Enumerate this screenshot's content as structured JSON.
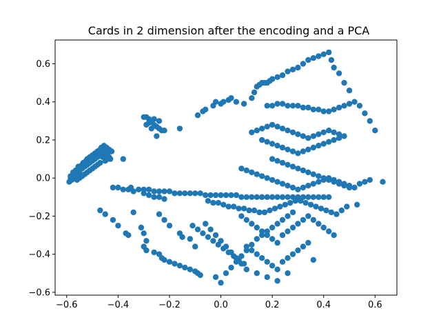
{
  "chart_data": {
    "type": "scatter",
    "title": "Cards in 2 dimension after the encoding and a PCA",
    "xlabel": "",
    "ylabel": "",
    "xlim": [
      -0.645,
      0.685
    ],
    "ylim": [
      -0.615,
      0.725
    ],
    "xticks": [
      -0.6,
      -0.4,
      -0.2,
      0.0,
      0.2,
      0.4,
      0.6
    ],
    "xtick_labels": [
      "−0.6",
      "−0.4",
      "−0.2",
      "0.0",
      "0.2",
      "0.4",
      "0.6"
    ],
    "yticks": [
      -0.6,
      -0.4,
      -0.2,
      0.0,
      0.2,
      0.4,
      0.6
    ],
    "ytick_labels": [
      "−0.6",
      "−0.4",
      "−0.2",
      "0.0",
      "0.2",
      "0.4",
      "0.6"
    ],
    "grid": false,
    "marker_color": "#1f77b4",
    "series": [
      {
        "name": "",
        "x": [
          -0.59,
          -0.585,
          -0.58,
          -0.575,
          -0.57,
          -0.565,
          -0.56,
          -0.555,
          -0.55,
          -0.545,
          -0.54,
          -0.535,
          -0.53,
          -0.525,
          -0.52,
          -0.515,
          -0.51,
          -0.505,
          -0.5,
          -0.495,
          -0.49,
          -0.485,
          -0.48,
          -0.475,
          -0.47,
          -0.465,
          -0.46,
          -0.455,
          -0.45,
          -0.445,
          -0.44,
          -0.435,
          -0.585,
          -0.575,
          -0.565,
          -0.555,
          -0.545,
          -0.535,
          -0.525,
          -0.515,
          -0.505,
          -0.495,
          -0.485,
          -0.475,
          -0.465,
          -0.455,
          -0.445,
          -0.435,
          -0.425,
          -0.58,
          -0.57,
          -0.56,
          -0.55,
          -0.54,
          -0.53,
          -0.52,
          -0.51,
          -0.5,
          -0.49,
          -0.48,
          -0.47,
          -0.46,
          -0.45,
          -0.44,
          -0.55,
          -0.53,
          -0.51,
          -0.49,
          -0.47,
          -0.45,
          -0.43,
          -0.56,
          -0.54,
          -0.52,
          -0.5,
          -0.48,
          -0.46,
          -0.29,
          -0.28,
          -0.27,
          -0.26,
          -0.25,
          -0.24,
          -0.23,
          -0.3,
          -0.28,
          -0.26,
          -0.27,
          -0.24,
          -0.22,
          -0.29,
          -0.25,
          -0.16,
          -0.38,
          -0.09,
          -0.07,
          -0.06,
          -0.03,
          -0.02,
          0.0,
          0.01,
          0.03,
          0.04,
          0.06,
          0.09,
          0.12,
          0.13,
          0.14,
          0.15,
          0.16,
          0.17,
          0.18,
          0.19,
          0.2,
          0.22,
          0.24,
          0.26,
          0.28,
          0.3,
          0.32,
          0.34,
          0.36,
          0.38,
          0.4,
          0.42,
          0.43,
          0.44,
          0.46,
          0.48,
          0.5,
          0.52,
          0.54,
          0.56,
          0.58,
          0.6,
          0.18,
          0.2,
          0.22,
          0.24,
          0.26,
          0.28,
          0.3,
          0.32,
          0.34,
          0.36,
          0.38,
          0.4,
          0.42,
          0.44,
          0.46,
          0.48,
          0.5,
          0.12,
          0.14,
          0.16,
          0.18,
          0.2,
          0.22,
          0.24,
          0.26,
          0.28,
          0.3,
          0.32,
          0.34,
          0.36,
          0.38,
          0.4,
          0.42,
          0.44,
          0.46,
          0.48,
          0.16,
          0.18,
          0.2,
          0.22,
          0.24,
          0.26,
          0.28,
          0.3,
          0.32,
          0.34,
          0.36,
          0.38,
          0.4,
          0.42,
          0.44,
          0.46,
          0.2,
          0.22,
          0.24,
          0.26,
          0.28,
          0.3,
          0.32,
          0.34,
          0.36,
          0.38,
          0.4,
          0.42,
          0.44,
          0.46,
          0.48,
          0.5,
          0.08,
          0.1,
          0.12,
          0.14,
          0.16,
          0.18,
          0.2,
          0.22,
          0.24,
          0.26,
          0.28,
          0.3,
          0.32,
          0.34,
          0.36,
          0.38,
          0.4,
          0.42,
          0.44,
          0.46,
          0.48,
          0.5,
          0.52,
          0.54,
          0.56,
          0.58,
          0.63,
          -0.35,
          -0.32,
          -0.3,
          -0.28,
          -0.26,
          -0.24,
          -0.22,
          -0.2,
          -0.18,
          -0.16,
          -0.14,
          -0.12,
          -0.1,
          -0.08,
          -0.06,
          -0.04,
          -0.02,
          0.0,
          0.02,
          0.04,
          0.06,
          0.08,
          0.1,
          0.12,
          0.14,
          0.16,
          0.18,
          0.2,
          0.22,
          0.24,
          0.26,
          0.28,
          0.3,
          0.32,
          0.34,
          0.36,
          0.38,
          0.4,
          0.42,
          -0.42,
          -0.4,
          -0.38,
          -0.36,
          -0.34,
          -0.3,
          -0.28,
          -0.26,
          -0.24,
          -0.22,
          -0.05,
          -0.03,
          -0.01,
          0.01,
          0.03,
          0.05,
          0.07,
          0.09,
          0.11,
          0.13,
          0.15,
          0.17,
          0.19,
          0.21,
          0.23,
          0.25,
          0.27,
          0.29,
          0.31,
          0.33,
          0.35,
          0.37,
          0.39,
          0.41,
          0.43,
          0.45,
          0.47,
          0.49,
          0.53,
          -0.47,
          -0.45,
          -0.42,
          -0.4,
          -0.37,
          -0.36,
          -0.34,
          -0.31,
          -0.3,
          -0.29,
          -0.3,
          -0.29,
          -0.26,
          -0.24,
          -0.23,
          -0.22,
          -0.2,
          -0.18,
          -0.16,
          -0.14,
          -0.12,
          -0.1,
          -0.09,
          -0.08,
          -0.24,
          -0.22,
          -0.2,
          -0.16,
          -0.15,
          -0.12,
          -0.1,
          -0.11,
          -0.09,
          -0.07,
          -0.05,
          -0.03,
          -0.01,
          0.01,
          0.03,
          0.05,
          0.07,
          0.09,
          0.08,
          0.1,
          0.12,
          0.14,
          0.16,
          0.18,
          0.2,
          0.22,
          0.24,
          0.26,
          0.28,
          0.3,
          0.32,
          0.34,
          0.36,
          0.38,
          0.4,
          0.42,
          0.44,
          0.1,
          0.12,
          0.14,
          0.16,
          0.18,
          0.2,
          0.22,
          0.24,
          0.26,
          0.28,
          0.3,
          0.32,
          0.34,
          0.36,
          -0.02,
          0.0,
          0.02,
          0.04,
          0.06,
          0.08,
          0.1,
          0.12,
          0.14,
          0.16,
          0.18,
          0.2,
          0.22,
          0.24,
          0.26,
          0.28,
          -0.06,
          -0.04,
          -0.02,
          0.0,
          0.02,
          0.04,
          0.06,
          0.08,
          0.1,
          0.14,
          0.18,
          0.22,
          0.26
        ],
        "y": [
          -0.02,
          0.0,
          0.01,
          0.02,
          0.03,
          0.02,
          0.04,
          0.05,
          0.06,
          0.05,
          0.07,
          0.08,
          0.07,
          0.09,
          0.1,
          0.09,
          0.11,
          0.1,
          0.12,
          0.11,
          0.13,
          0.12,
          0.14,
          0.13,
          0.15,
          0.14,
          0.16,
          0.15,
          0.14,
          0.13,
          0.12,
          0.11,
          0.01,
          0.03,
          0.04,
          0.06,
          0.06,
          0.08,
          0.09,
          0.1,
          0.11,
          0.12,
          0.13,
          0.14,
          0.16,
          0.17,
          0.16,
          0.15,
          0.14,
          -0.01,
          0.0,
          0.02,
          0.03,
          0.05,
          0.06,
          0.07,
          0.08,
          0.09,
          0.1,
          0.11,
          0.12,
          0.13,
          0.12,
          0.1,
          0.0,
          0.02,
          0.04,
          0.06,
          0.08,
          0.09,
          0.1,
          -0.01,
          0.01,
          0.03,
          0.05,
          0.07,
          0.11,
          0.32,
          0.31,
          0.3,
          0.28,
          0.27,
          0.26,
          0.25,
          0.32,
          0.29,
          0.31,
          0.26,
          0.3,
          0.25,
          0.28,
          0.22,
          0.26,
          0.1,
          0.33,
          0.35,
          0.36,
          0.38,
          0.4,
          0.39,
          0.4,
          0.41,
          0.42,
          0.4,
          0.39,
          0.42,
          0.45,
          0.48,
          0.49,
          0.5,
          0.5,
          0.5,
          0.51,
          0.52,
          0.53,
          0.54,
          0.56,
          0.57,
          0.58,
          0.6,
          0.62,
          0.63,
          0.64,
          0.65,
          0.66,
          0.62,
          0.58,
          0.55,
          0.5,
          0.46,
          0.4,
          0.38,
          0.34,
          0.3,
          0.25,
          0.38,
          0.38,
          0.39,
          0.39,
          0.38,
          0.38,
          0.38,
          0.37,
          0.37,
          0.36,
          0.36,
          0.35,
          0.35,
          0.36,
          0.37,
          0.38,
          0.39,
          0.24,
          0.25,
          0.26,
          0.27,
          0.28,
          0.27,
          0.26,
          0.25,
          0.24,
          0.23,
          0.22,
          0.21,
          0.22,
          0.23,
          0.24,
          0.25,
          0.24,
          0.23,
          0.22,
          0.2,
          0.19,
          0.18,
          0.17,
          0.16,
          0.15,
          0.14,
          0.13,
          0.14,
          0.15,
          0.16,
          0.17,
          0.18,
          0.19,
          0.2,
          0.21,
          0.1,
          0.09,
          0.08,
          0.07,
          0.06,
          0.05,
          0.04,
          0.03,
          0.02,
          0.01,
          0.0,
          -0.01,
          -0.02,
          -0.03,
          -0.04,
          -0.05,
          0.05,
          0.04,
          0.03,
          0.02,
          0.01,
          0.0,
          -0.01,
          -0.02,
          -0.03,
          -0.04,
          -0.05,
          -0.06,
          -0.05,
          -0.04,
          -0.03,
          -0.02,
          -0.01,
          0.0,
          -0.01,
          -0.02,
          -0.03,
          -0.04,
          -0.05,
          -0.03,
          -0.02,
          -0.01,
          -0.02,
          -0.05,
          -0.06,
          -0.06,
          -0.06,
          -0.07,
          -0.07,
          -0.07,
          -0.07,
          -0.08,
          -0.08,
          -0.08,
          -0.08,
          -0.08,
          -0.08,
          -0.09,
          -0.09,
          -0.09,
          -0.09,
          -0.09,
          -0.09,
          -0.09,
          -0.1,
          -0.1,
          -0.1,
          -0.1,
          -0.1,
          -0.1,
          -0.1,
          -0.1,
          -0.1,
          -0.1,
          -0.1,
          -0.1,
          -0.1,
          -0.1,
          -0.1,
          -0.1,
          -0.1,
          -0.1,
          -0.05,
          -0.05,
          -0.06,
          -0.06,
          -0.07,
          -0.08,
          -0.09,
          -0.1,
          -0.1,
          -0.11,
          -0.12,
          -0.13,
          -0.13,
          -0.14,
          -0.15,
          -0.15,
          -0.16,
          -0.16,
          -0.17,
          -0.17,
          -0.18,
          -0.18,
          -0.17,
          -0.16,
          -0.15,
          -0.14,
          -0.13,
          -0.12,
          -0.12,
          -0.13,
          -0.14,
          -0.15,
          -0.16,
          -0.17,
          -0.18,
          -0.19,
          -0.17,
          -0.15,
          -0.14,
          -0.17,
          -0.19,
          -0.22,
          -0.25,
          -0.29,
          -0.3,
          -0.18,
          -0.26,
          -0.29,
          -0.33,
          -0.36,
          -0.38,
          -0.39,
          -0.4,
          -0.42,
          -0.43,
          -0.44,
          -0.45,
          -0.46,
          -0.47,
          -0.48,
          -0.49,
          -0.5,
          -0.51,
          -0.19,
          -0.22,
          -0.25,
          -0.29,
          -0.31,
          -0.32,
          -0.36,
          -0.25,
          -0.27,
          -0.29,
          -0.31,
          -0.33,
          -0.35,
          -0.37,
          -0.39,
          -0.41,
          -0.43,
          -0.45,
          -0.2,
          -0.22,
          -0.24,
          -0.26,
          -0.28,
          -0.3,
          -0.32,
          -0.34,
          -0.3,
          -0.28,
          -0.26,
          -0.24,
          -0.22,
          -0.2,
          -0.22,
          -0.24,
          -0.26,
          -0.28,
          -0.3,
          -0.36,
          -0.38,
          -0.4,
          -0.42,
          -0.44,
          -0.46,
          -0.48,
          -0.44,
          -0.42,
          -0.4,
          -0.38,
          -0.36,
          -0.34,
          -0.43,
          -0.52,
          -0.55,
          -0.5,
          -0.47,
          -0.44,
          -0.41,
          -0.38,
          -0.35,
          -0.32,
          -0.3,
          -0.28,
          -0.26,
          -0.24,
          -0.22,
          -0.2,
          -0.18,
          -0.24,
          -0.27,
          -0.3,
          -0.33,
          -0.36,
          -0.39,
          -0.42,
          -0.45,
          -0.48,
          -0.5,
          -0.52,
          -0.54,
          -0.5
        ]
      }
    ]
  }
}
